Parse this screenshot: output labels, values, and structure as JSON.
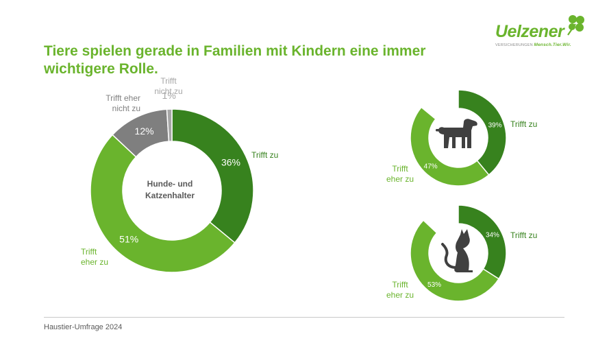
{
  "title": "Tiere spielen gerade in Familien mit Kindern eine immer wichtigere Rolle.",
  "logo": {
    "brand": "Uelzener",
    "tagline_prefix": "VERSICHERUNGEN",
    "tagline_slogan": "Mensch.Tier.Wir.",
    "icon": "clover-icon"
  },
  "footer": "Haustier-Umfrage 2024",
  "colors": {
    "dark_green": "#37821e",
    "light_green": "#6ab42d",
    "gray": "#7f7f7f",
    "light_gray": "#a6a6a6",
    "animal": "#404040"
  },
  "chart_data": [
    {
      "type": "pie",
      "center_label": [
        "Hunde- und",
        "Katzenhalter"
      ],
      "slices": [
        {
          "label": [
            "Trifft zu"
          ],
          "value": 36,
          "value_label": "36%"
        },
        {
          "label": [
            "Trifft",
            "eher zu"
          ],
          "value": 51,
          "value_label": "51%"
        },
        {
          "label": [
            "Trifft eher",
            "nicht zu"
          ],
          "value": 12,
          "value_label": "12%"
        },
        {
          "label": [
            "Trifft",
            "nicht zu"
          ],
          "value": 1,
          "value_label": "1%"
        }
      ]
    },
    {
      "type": "pie",
      "icon": "dog-icon",
      "slices": [
        {
          "label": [
            "Trifft zu"
          ],
          "value": 39,
          "value_label": "39%"
        },
        {
          "label": [
            "Trifft",
            "eher zu"
          ],
          "value": 47,
          "value_label": "47%"
        }
      ]
    },
    {
      "type": "pie",
      "icon": "cat-icon",
      "slices": [
        {
          "label": [
            "Trifft zu"
          ],
          "value": 34,
          "value_label": "34%"
        },
        {
          "label": [
            "Trifft",
            "eher zu"
          ],
          "value": 53,
          "value_label": "53%"
        }
      ]
    }
  ]
}
